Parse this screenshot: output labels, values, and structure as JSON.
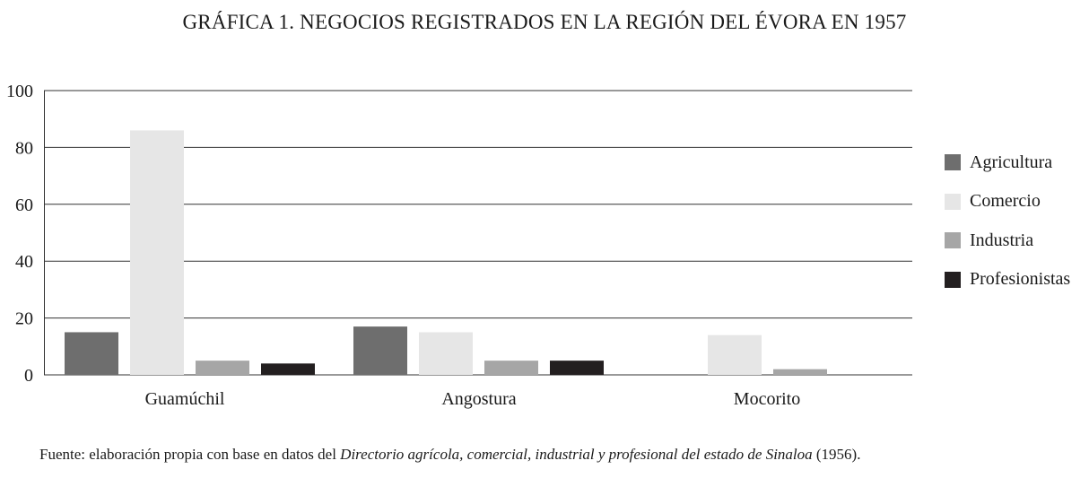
{
  "chart_data": {
    "type": "bar",
    "title": "GRÁFICA 1. NEGOCIOS REGISTRADOS EN LA REGIÓN DEL ÉVORA EN 1957",
    "categories": [
      "Guamúchil",
      "Angostura",
      "Mocorito"
    ],
    "series": [
      {
        "name": "Agricultura",
        "color": "#6e6e6e",
        "values": [
          15,
          17,
          0
        ]
      },
      {
        "name": "Comercio",
        "color": "#e6e6e6",
        "values": [
          86,
          15,
          14
        ]
      },
      {
        "name": "Industria",
        "color": "#a6a6a6",
        "values": [
          5,
          5,
          2
        ]
      },
      {
        "name": "Profesionistas",
        "color": "#231f20",
        "values": [
          4,
          5,
          0
        ]
      }
    ],
    "ylim": [
      0,
      100
    ],
    "yticks": [
      "0",
      "20",
      "40",
      "60",
      "80",
      "100"
    ],
    "grid": true,
    "legend_position": "right"
  },
  "source": {
    "prefix": "Fuente: elaboración propia con base en datos del ",
    "italic": "Directorio agrícola, comercial, industrial y profesional del estado de Sinaloa",
    "suffix": " (1956)."
  }
}
